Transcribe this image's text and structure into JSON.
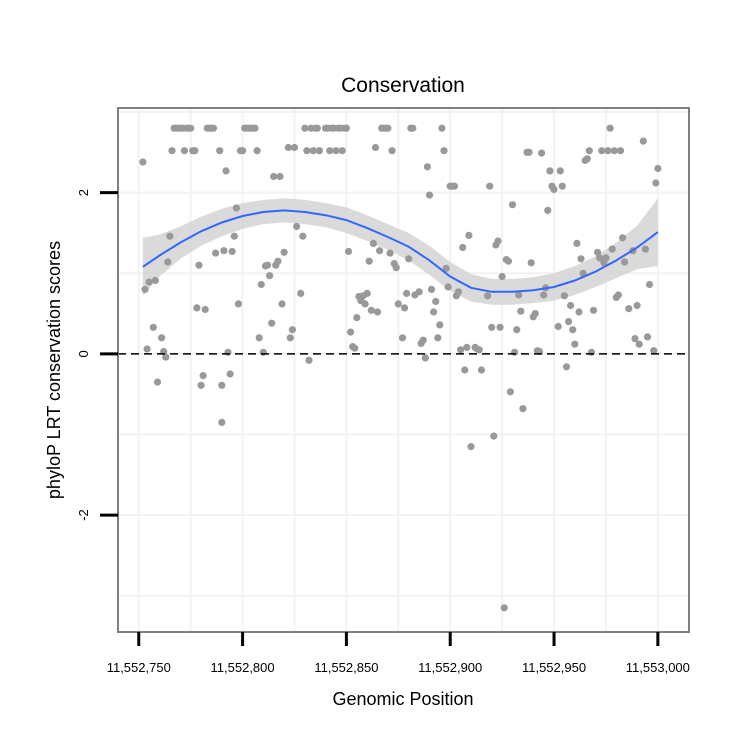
{
  "chart_data": {
    "type": "scatter",
    "title": "Conservation",
    "xlabel": "Genomic Position",
    "ylabel": "phyloP LRT conservation scores",
    "xlim": [
      11552740,
      11553015
    ],
    "ylim": [
      -3.45,
      3.05
    ],
    "x_ticks": [
      11552750,
      11552800,
      11552850,
      11552900,
      11552950,
      11553000
    ],
    "x_tick_labels": [
      "11,552,750",
      "11,552,800",
      "11,552,850",
      "11,552,900",
      "11,552,950",
      "11,553,000"
    ],
    "y_ticks": [
      -2,
      0,
      2
    ],
    "y_tick_labels": [
      "-2",
      "0",
      "2"
    ],
    "reference_line": {
      "y": 0,
      "style": "dashed"
    },
    "colors": {
      "points": "#999999",
      "smooth": "#3366FF",
      "band": "#D3D3D3",
      "grid": "#F2F2F2",
      "border": "#7F7F7F"
    },
    "points": [
      [
        11552752,
        2.38
      ],
      [
        11552753,
        0.8
      ],
      [
        11552754,
        0.06
      ],
      [
        11552755,
        0.89
      ],
      [
        11552757,
        0.33
      ],
      [
        11552758,
        0.91
      ],
      [
        11552759,
        -0.35
      ],
      [
        11552761,
        0.2
      ],
      [
        11552762,
        0.03
      ],
      [
        11552763,
        -0.04
      ],
      [
        11552764,
        1.14
      ],
      [
        11552765,
        1.46
      ],
      [
        11552766,
        2.52
      ],
      [
        11552767,
        2.8
      ],
      [
        11552768,
        2.8
      ],
      [
        11552769,
        2.8
      ],
      [
        11552770,
        2.8
      ],
      [
        11552771,
        2.8
      ],
      [
        11552772,
        2.52
      ],
      [
        11552773,
        2.8
      ],
      [
        11552774,
        2.8
      ],
      [
        11552775,
        2.8
      ],
      [
        11552776,
        2.52
      ],
      [
        11552777,
        2.52
      ],
      [
        11552778,
        0.57
      ],
      [
        11552779,
        1.1
      ],
      [
        11552780,
        -0.39
      ],
      [
        11552781,
        -0.27
      ],
      [
        11552782,
        0.55
      ],
      [
        11552783,
        2.8
      ],
      [
        11552784,
        2.8
      ],
      [
        11552785,
        2.8
      ],
      [
        11552786,
        2.8
      ],
      [
        11552787,
        1.25
      ],
      [
        11552789,
        2.52
      ],
      [
        11552790,
        -0.39
      ],
      [
        11552790,
        -0.85
      ],
      [
        11552791,
        1.28
      ],
      [
        11552792,
        2.27
      ],
      [
        11552793,
        0.02
      ],
      [
        11552794,
        -0.25
      ],
      [
        11552795,
        1.27
      ],
      [
        11552796,
        1.46
      ],
      [
        11552797,
        1.81
      ],
      [
        11552798,
        0.62
      ],
      [
        11552799,
        2.52
      ],
      [
        11552800,
        2.52
      ],
      [
        11552801,
        2.8
      ],
      [
        11552802,
        2.8
      ],
      [
        11552803,
        2.8
      ],
      [
        11552804,
        2.8
      ],
      [
        11552805,
        2.8
      ],
      [
        11552806,
        2.8
      ],
      [
        11552807,
        2.52
      ],
      [
        11552808,
        0.2
      ],
      [
        11552809,
        0.86
      ],
      [
        11552810,
        0.02
      ],
      [
        11552811,
        1.09
      ],
      [
        11552812,
        1.1
      ],
      [
        11552813,
        0.97
      ],
      [
        11552814,
        0.38
      ],
      [
        11552815,
        2.2
      ],
      [
        11552816,
        1.1
      ],
      [
        11552817,
        1.15
      ],
      [
        11552818,
        2.2
      ],
      [
        11552819,
        0.62
      ],
      [
        11552820,
        1.26
      ],
      [
        11552822,
        2.56
      ],
      [
        11552823,
        0.2
      ],
      [
        11552824,
        0.3
      ],
      [
        11552825,
        2.56
      ],
      [
        11552826,
        1.58
      ],
      [
        11552828,
        0.75
      ],
      [
        11552829,
        1.46
      ],
      [
        11552830,
        2.8
      ],
      [
        11552831,
        2.52
      ],
      [
        11552832,
        -0.08
      ],
      [
        11552833,
        2.8
      ],
      [
        11552834,
        2.52
      ],
      [
        11552835,
        2.8
      ],
      [
        11552836,
        2.8
      ],
      [
        11552837,
        2.52
      ],
      [
        11552840,
        2.8
      ],
      [
        11552841,
        2.8
      ],
      [
        11552842,
        2.52
      ],
      [
        11552843,
        2.8
      ],
      [
        11552844,
        2.8
      ],
      [
        11552845,
        2.52
      ],
      [
        11552846,
        2.8
      ],
      [
        11552847,
        2.8
      ],
      [
        11552848,
        2.52
      ],
      [
        11552849,
        2.8
      ],
      [
        11552850,
        2.8
      ],
      [
        11552851,
        1.27
      ],
      [
        11552852,
        0.27
      ],
      [
        11552853,
        0.09
      ],
      [
        11552854,
        0.07
      ],
      [
        11552855,
        0.45
      ],
      [
        11552856,
        0.71
      ],
      [
        11552857,
        0.66
      ],
      [
        11552858,
        0.72
      ],
      [
        11552859,
        0.62
      ],
      [
        11552860,
        0.75
      ],
      [
        11552861,
        1.15
      ],
      [
        11552862,
        0.54
      ],
      [
        11552863,
        1.37
      ],
      [
        11552864,
        2.56
      ],
      [
        11552865,
        0.52
      ],
      [
        11552866,
        1.28
      ],
      [
        11552867,
        2.8
      ],
      [
        11552868,
        2.8
      ],
      [
        11552869,
        2.8
      ],
      [
        11552870,
        2.8
      ],
      [
        11552871,
        1.25
      ],
      [
        11552872,
        2.52
      ],
      [
        11552873,
        1.12
      ],
      [
        11552874,
        1.07
      ],
      [
        11552875,
        0.62
      ],
      [
        11552877,
        0.2
      ],
      [
        11552878,
        0.57
      ],
      [
        11552879,
        0.75
      ],
      [
        11552880,
        1.18
      ],
      [
        11552881,
        2.8
      ],
      [
        11552882,
        2.8
      ],
      [
        11552883,
        0.73
      ],
      [
        11552885,
        0.77
      ],
      [
        11552886,
        0.13
      ],
      [
        11552887,
        0.17
      ],
      [
        11552888,
        -0.05
      ],
      [
        11552889,
        2.32
      ],
      [
        11552890,
        1.97
      ],
      [
        11552891,
        0.8
      ],
      [
        11552892,
        0.52
      ],
      [
        11552893,
        0.65
      ],
      [
        11552894,
        0.2
      ],
      [
        11552895,
        0.36
      ],
      [
        11552896,
        2.8
      ],
      [
        11552897,
        2.52
      ],
      [
        11552898,
        1.06
      ],
      [
        11552899,
        0.83
      ],
      [
        11552900,
        2.08
      ],
      [
        11552901,
        2.08
      ],
      [
        11552902,
        2.08
      ],
      [
        11552903,
        0.72
      ],
      [
        11552904,
        0.77
      ],
      [
        11552905,
        0.05
      ],
      [
        11552906,
        1.32
      ],
      [
        11552907,
        -0.2
      ],
      [
        11552908,
        0.08
      ],
      [
        11552909,
        1.47
      ],
      [
        11552910,
        -1.15
      ],
      [
        11552912,
        0.08
      ],
      [
        11552913,
        0.06
      ],
      [
        11552914,
        0.05
      ],
      [
        11552915,
        -0.2
      ],
      [
        11552918,
        0.72
      ],
      [
        11552919,
        2.08
      ],
      [
        11552920,
        0.33
      ],
      [
        11552921,
        -1.02
      ],
      [
        11552922,
        1.35
      ],
      [
        11552923,
        1.4
      ],
      [
        11552924,
        0.33
      ],
      [
        11552925,
        0.96
      ],
      [
        11552926,
        -3.15
      ],
      [
        11552927,
        1.17
      ],
      [
        11552928,
        1.15
      ],
      [
        11552929,
        -0.47
      ],
      [
        11552930,
        1.85
      ],
      [
        11552931,
        0.02
      ],
      [
        11552932,
        0.3
      ],
      [
        11552933,
        0.73
      ],
      [
        11552934,
        0.53
      ],
      [
        11552935,
        -0.68
      ],
      [
        11552937,
        2.5
      ],
      [
        11552938,
        2.5
      ],
      [
        11552939,
        1.13
      ],
      [
        11552940,
        0.46
      ],
      [
        11552941,
        0.5
      ],
      [
        11552942,
        0.04
      ],
      [
        11552943,
        0.03
      ],
      [
        11552944,
        2.49
      ],
      [
        11552945,
        0.73
      ],
      [
        11552946,
        0.82
      ],
      [
        11552947,
        1.78
      ],
      [
        11552948,
        2.27
      ],
      [
        11552949,
        2.08
      ],
      [
        11552950,
        2.04
      ],
      [
        11552952,
        0.34
      ],
      [
        11552953,
        2.27
      ],
      [
        11552954,
        2.08
      ],
      [
        11552955,
        0.72
      ],
      [
        11552956,
        -0.16
      ],
      [
        11552957,
        0.4
      ],
      [
        11552958,
        0.6
      ],
      [
        11552959,
        0.3
      ],
      [
        11552960,
        0.12
      ],
      [
        11552961,
        1.37
      ],
      [
        11552962,
        0.52
      ],
      [
        11552963,
        1.18
      ],
      [
        11552964,
        1.0
      ],
      [
        11552965,
        2.4
      ],
      [
        11552966,
        2.42
      ],
      [
        11552967,
        2.52
      ],
      [
        11552968,
        0.02
      ],
      [
        11552969,
        0.54
      ],
      [
        11552971,
        1.26
      ],
      [
        11552972,
        1.19
      ],
      [
        11552973,
        2.52
      ],
      [
        11552974,
        1.13
      ],
      [
        11552975,
        1.19
      ],
      [
        11552976,
        2.52
      ],
      [
        11552977,
        2.8
      ],
      [
        11552978,
        1.3
      ],
      [
        11552979,
        2.52
      ],
      [
        11552980,
        0.7
      ],
      [
        11552981,
        0.73
      ],
      [
        11552982,
        2.52
      ],
      [
        11552983,
        1.44
      ],
      [
        11552984,
        1.14
      ],
      [
        11552986,
        0.56
      ],
      [
        11552988,
        1.28
      ],
      [
        11552989,
        0.19
      ],
      [
        11552990,
        0.6
      ],
      [
        11552991,
        0.12
      ],
      [
        11552993,
        2.64
      ],
      [
        11552994,
        1.3
      ],
      [
        11552995,
        0.21
      ],
      [
        11552996,
        0.86
      ],
      [
        11552998,
        0.04
      ],
      [
        11552999,
        2.12
      ],
      [
        11553000,
        2.3
      ]
    ],
    "smooth": {
      "x": [
        11552752,
        11552760,
        11552770,
        11552780,
        11552790,
        11552800,
        11552810,
        11552820,
        11552830,
        11552840,
        11552850,
        11552860,
        11552870,
        11552880,
        11552890,
        11552900,
        11552910,
        11552920,
        11552930,
        11552940,
        11552950,
        11552960,
        11552970,
        11552980,
        11552990,
        11553000
      ],
      "y": [
        1.08,
        1.22,
        1.38,
        1.52,
        1.63,
        1.71,
        1.76,
        1.78,
        1.76,
        1.72,
        1.66,
        1.56,
        1.45,
        1.33,
        1.16,
        0.96,
        0.82,
        0.77,
        0.77,
        0.79,
        0.83,
        0.91,
        1.02,
        1.16,
        1.32,
        1.51
      ],
      "lo": [
        0.72,
        0.96,
        1.18,
        1.34,
        1.46,
        1.55,
        1.61,
        1.63,
        1.61,
        1.57,
        1.5,
        1.4,
        1.29,
        1.16,
        0.98,
        0.78,
        0.65,
        0.61,
        0.61,
        0.63,
        0.66,
        0.73,
        0.83,
        0.94,
        1.05,
        1.09
      ],
      "hi": [
        1.44,
        1.48,
        1.58,
        1.7,
        1.8,
        1.87,
        1.91,
        1.93,
        1.91,
        1.87,
        1.82,
        1.72,
        1.61,
        1.5,
        1.34,
        1.14,
        0.99,
        0.93,
        0.93,
        0.95,
        1.0,
        1.09,
        1.21,
        1.38,
        1.59,
        1.93
      ]
    }
  }
}
